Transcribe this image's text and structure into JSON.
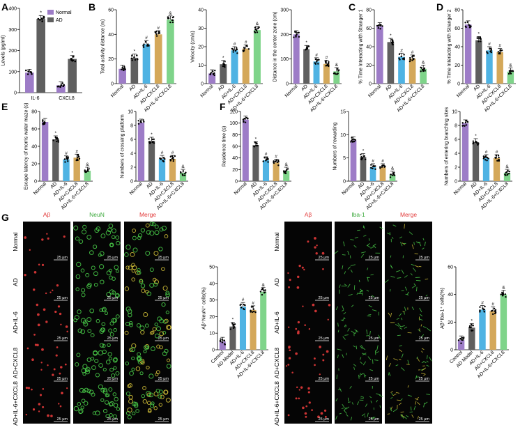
{
  "figure": {
    "panel_letters": [
      "A",
      "B",
      "C",
      "D",
      "E",
      "F",
      "G"
    ],
    "scale_bar_text": "25 μm",
    "colors": {
      "normal": "#9d7cc7",
      "ad": "#5f5f5f",
      "il6": "#4fb3e3",
      "cxcl8": "#d4a85a",
      "il6cxcl8": "#7fd48a",
      "red_stain": "#e23a3a",
      "green_stain": "#4bd24b"
    }
  },
  "chart_data": [
    {
      "id": "A",
      "type": "bar",
      "ylabel": "Levels (pg/ml)",
      "ylim": [
        0,
        400
      ],
      "yticks": [
        0,
        100,
        200,
        300,
        400
      ],
      "categories": [
        "IL-6",
        "CXCL8"
      ],
      "legend": [
        "Normal",
        "AD"
      ],
      "series": [
        {
          "name": "Normal",
          "values": [
            95,
            35
          ]
        },
        {
          "name": "AD",
          "values": [
            350,
            160
          ]
        }
      ],
      "annotations": [
        "",
        "*",
        "",
        "*"
      ]
    },
    {
      "id": "B1",
      "type": "bar",
      "ylabel": "Total activity distance (m)",
      "ylim": [
        0,
        60
      ],
      "yticks": [
        0,
        20,
        40,
        60
      ],
      "categories": [
        "Normal",
        "AD",
        "AD+IL-6",
        "AD+CXCL8",
        "AD+IL-6+CXCL8"
      ],
      "values": [
        12,
        21,
        32,
        40,
        52
      ],
      "annotations": [
        "",
        "*",
        "#",
        "#",
        "&"
      ]
    },
    {
      "id": "B2",
      "type": "bar",
      "ylabel": "Velocity (cm/s)",
      "ylim": [
        0,
        40
      ],
      "yticks": [
        0,
        10,
        20,
        30,
        40
      ],
      "categories": [
        "Normal",
        "AD",
        "AD+IL-6",
        "AD+CXCL8",
        "AD+IL-6+CXCL8"
      ],
      "values": [
        5.5,
        10.5,
        18,
        19,
        29
      ],
      "annotations": [
        "",
        "*",
        "#",
        "#",
        "&"
      ]
    },
    {
      "id": "B3",
      "type": "bar",
      "ylabel": "Distance in the center zone (cm)",
      "ylim": [
        0,
        300
      ],
      "yticks": [
        0,
        100,
        200,
        300
      ],
      "categories": [
        "Normal",
        "AD",
        "AD+IL-6",
        "AD+CXCL8",
        "AD+IL-6+CXCL8"
      ],
      "values": [
        200,
        140,
        90,
        80,
        50
      ],
      "annotations": [
        "",
        "*",
        "#",
        "#",
        "&"
      ]
    },
    {
      "id": "C",
      "type": "bar",
      "ylabel": "% Time Interacting with Stranger 1",
      "ylim": [
        0,
        80
      ],
      "yticks": [
        0,
        20,
        40,
        60,
        80
      ],
      "categories": [
        "Normal",
        "AD",
        "AD+IL-6",
        "AD+CXCL8",
        "AD+IL-6+CXCL8"
      ],
      "values": [
        62,
        45,
        29,
        27,
        16
      ],
      "annotations": [
        "",
        "*",
        "#",
        "#",
        "&"
      ]
    },
    {
      "id": "D",
      "type": "bar",
      "ylabel": "% Time Interacting with Stranger 2",
      "ylim": [
        0,
        80
      ],
      "yticks": [
        0,
        20,
        40,
        60,
        80
      ],
      "categories": [
        "Normal",
        "AD",
        "AD+IL-6",
        "AD+CXCL8",
        "AD+IL-6+CXCL8"
      ],
      "values": [
        64,
        47,
        36,
        34,
        13
      ],
      "annotations": [
        "",
        "*",
        "#",
        "#",
        "&"
      ]
    },
    {
      "id": "E1",
      "type": "bar",
      "ylabel": "Escape latency of morris water maze (s)",
      "ylim": [
        0,
        80
      ],
      "yticks": [
        0,
        20,
        40,
        60,
        80
      ],
      "categories": [
        "Normal",
        "AD",
        "AD+IL-6",
        "AD+CXCL8",
        "AD+IL-6+CXCL8"
      ],
      "values": [
        68,
        48,
        25,
        27,
        12
      ],
      "annotations": [
        "",
        "*",
        "#",
        "#",
        "&"
      ]
    },
    {
      "id": "E2",
      "type": "bar",
      "ylabel": "Numbers of crossing platform",
      "ylim": [
        0,
        10
      ],
      "yticks": [
        0,
        2,
        4,
        6,
        8,
        10
      ],
      "categories": [
        "Normal",
        "AD",
        "AD+IL-6",
        "AD+CXCL8",
        "AD+IL-6+CXCL8"
      ],
      "values": [
        8.4,
        5.8,
        3.2,
        3.2,
        1.2
      ],
      "annotations": [
        "",
        "*",
        "#",
        "#",
        "&"
      ]
    },
    {
      "id": "F1",
      "type": "bar",
      "ylabel": "Residence time (s)",
      "ylim": [
        0,
        120
      ],
      "yticks": [
        0,
        20,
        40,
        60,
        80,
        100,
        120
      ],
      "categories": [
        "Normal",
        "AD",
        "AD+IL-6",
        "AD+CXCL8",
        "AD+IL-6+CXCL8"
      ],
      "values": [
        106,
        62,
        36,
        32,
        18
      ],
      "annotations": [
        "",
        "*",
        "#",
        "#",
        "&"
      ]
    },
    {
      "id": "F2",
      "type": "bar",
      "ylabel": "Numbers of rewarding",
      "ylim": [
        0,
        15
      ],
      "yticks": [
        0,
        5,
        10,
        15
      ],
      "categories": [
        "Normal",
        "AD",
        "AD+IL-6",
        "AD+CXCL8",
        "AD+IL-6+CXCL8"
      ],
      "values": [
        8.8,
        5.2,
        3.0,
        3.0,
        1.4
      ],
      "annotations": [
        "",
        "*",
        "#",
        "#",
        "&"
      ]
    },
    {
      "id": "F3",
      "type": "bar",
      "ylabel": "Numbers of entering branching sites",
      "ylim": [
        0,
        10
      ],
      "yticks": [
        0,
        2,
        4,
        6,
        8,
        10
      ],
      "categories": [
        "Normal",
        "AD",
        "AD+IL-6",
        "AD+CXCL8",
        "AD+IL-6+CXCL8"
      ],
      "values": [
        8.3,
        5.6,
        3.3,
        3.3,
        1.2
      ],
      "annotations": [
        "",
        "*",
        "#",
        "#",
        "&"
      ]
    },
    {
      "id": "G1",
      "type": "bar",
      "ylabel": "Aβ⁺NeuN⁺ cells(%)",
      "ylim": [
        0,
        50
      ],
      "yticks": [
        0,
        10,
        20,
        30,
        40,
        50
      ],
      "categories": [
        "Control",
        "AD Model",
        "AD+IL-6",
        "AD+CXCL8",
        "AD+IL-6+CXCL8"
      ],
      "values": [
        5,
        14,
        26,
        24,
        35
      ],
      "annotations": [
        "",
        "*",
        "#",
        "#",
        "&"
      ]
    },
    {
      "id": "G2",
      "type": "bar",
      "ylabel": "Aβ⁺Iba-1⁺ cells(%)",
      "ylim": [
        0,
        60
      ],
      "yticks": [
        0,
        20,
        40,
        60
      ],
      "categories": [
        "Control",
        "AD Model",
        "AD+IL-6",
        "AD+CXCL8",
        "AD+IL-6+CXCL8"
      ],
      "values": [
        7,
        16,
        29,
        28,
        40
      ],
      "annotations": [
        "",
        "*",
        "#",
        "#",
        "&"
      ]
    }
  ],
  "micrographs": {
    "left": {
      "col_headers": [
        {
          "text": "Aβ",
          "color": "#e23a3a"
        },
        {
          "text": "NeuN",
          "color": "#3aa83a"
        },
        {
          "text": "Merge",
          "color": "#e23a3a"
        }
      ]
    },
    "right": {
      "col_headers": [
        {
          "text": "Aβ",
          "color": "#e23a3a"
        },
        {
          "text": "Iba-1",
          "color": "#3aa83a"
        },
        {
          "text": "Merge",
          "color": "#e23a3a"
        }
      ]
    },
    "row_labels": [
      "Normal",
      "AD",
      "AD+IL-6",
      "AD+CXCL8",
      "AD+IL-6+CXCL8"
    ]
  }
}
